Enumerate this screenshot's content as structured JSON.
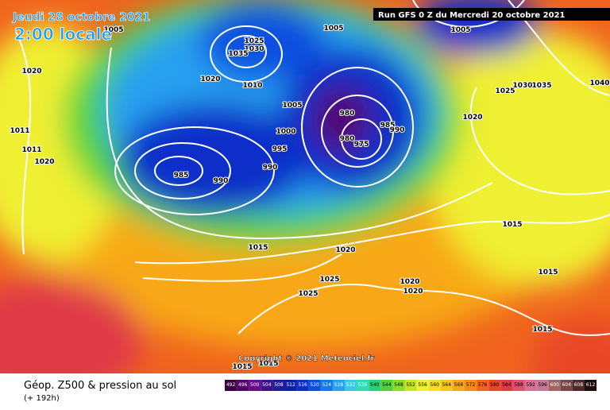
{
  "header": {
    "date": "Jeudi 28 octobre 2021",
    "time": "2:00 locale",
    "run": "Run GFS 0 Z du Mercredi 20 octobre 2021"
  },
  "copyright": "Copyright © 2021 Meteociel.fr",
  "footer": {
    "title": "Géop. Z500 & pression au sol",
    "lead": "(+ 192h)"
  },
  "isobar_labels": [
    1005,
    1025,
    1030,
    1035,
    1020,
    1010,
    1005,
    1000,
    995,
    990,
    985,
    990,
    980,
    980,
    975,
    985,
    990,
    1005,
    1005,
    1025,
    1030,
    1035,
    1020,
    1040,
    1020,
    1011,
    1011,
    1020,
    1015,
    1020,
    1025,
    1025,
    1020,
    1020,
    1015,
    1015,
    1015,
    1015,
    1015
  ],
  "scale": {
    "values": [
      492,
      496,
      500,
      504,
      508,
      512,
      516,
      520,
      524,
      528,
      532,
      536,
      540,
      544,
      548,
      552,
      556,
      560,
      564,
      568,
      572,
      576,
      580,
      584,
      588,
      592,
      596,
      600,
      604,
      608,
      612
    ],
    "colors": [
      "#3a0040",
      "#55006a",
      "#6a0a8a",
      "#40108c",
      "#201a9a",
      "#0a1ea8",
      "#0a2fc8",
      "#0a50e0",
      "#1478f0",
      "#28a0f0",
      "#3cc8e6",
      "#30dcb4",
      "#28d278",
      "#50d23c",
      "#8cdc28",
      "#c8e628",
      "#f0f032",
      "#f8dc28",
      "#f8c41e",
      "#f8a814",
      "#f88c14",
      "#f0641e",
      "#e84628",
      "#e03a46",
      "#e0506e",
      "#dc6e96",
      "#c87896",
      "#a06464",
      "#784646",
      "#502828",
      "#1e0a0a"
    ]
  }
}
